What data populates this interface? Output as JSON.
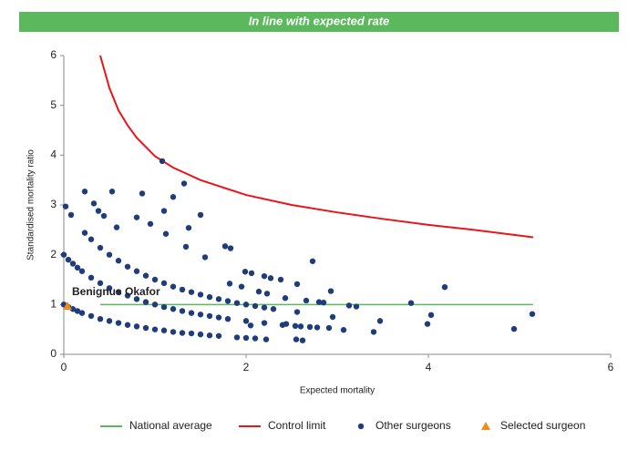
{
  "chart_data": {
    "type": "scatter",
    "title": "In line with expected rate",
    "xlabel": "Expected mortality",
    "ylabel": "Standardised mortality ratio",
    "annotation": "Benignus Okafor",
    "xlim": [
      0,
      6
    ],
    "ylim": [
      0,
      6
    ],
    "xticks": [
      0,
      2,
      4,
      6
    ],
    "yticks": [
      0,
      1,
      2,
      3,
      4,
      5,
      6
    ],
    "grid": false,
    "series": [
      {
        "name": "National average",
        "color": "#5cb85c",
        "marker": "line",
        "x": [
          0.4,
          5.15
        ],
        "values": [
          1,
          1
        ]
      },
      {
        "name": "Control limit",
        "color": "#e8151b",
        "marker": "line",
        "x": [
          0.4,
          0.5,
          0.6,
          0.7,
          0.8,
          1.0,
          1.2,
          1.5,
          2.0,
          2.5,
          3.0,
          3.5,
          4.0,
          4.5,
          5.15
        ],
        "values": [
          6.0,
          5.35,
          4.9,
          4.6,
          4.35,
          3.98,
          3.75,
          3.5,
          3.2,
          3.0,
          2.85,
          2.72,
          2.6,
          2.5,
          2.35
        ]
      },
      {
        "name": "Other surgeons",
        "color": "#1f3d7a",
        "marker": "circle",
        "x": [
          0,
          0.05,
          0.1,
          0.15,
          0.2,
          0.3,
          0.4,
          0.5,
          0.6,
          0.7,
          0.8,
          0.9,
          1.0,
          1.1,
          1.2,
          1.3,
          1.4,
          1.5,
          1.6,
          1.7,
          1.9,
          2.0,
          2.1,
          0,
          0.05,
          0.1,
          0.15,
          0.2,
          0.3,
          0.4,
          0.5,
          0.6,
          0.7,
          0.8,
          0.9,
          1.0,
          1.1,
          1.2,
          1.3,
          1.4,
          1.5,
          1.6,
          1.7,
          1.8,
          2.0,
          2.2,
          2.4,
          2.6,
          0.23,
          0.3,
          0.4,
          0.5,
          0.6,
          0.7,
          0.8,
          0.9,
          1.0,
          1.1,
          1.2,
          1.3,
          1.4,
          1.5,
          1.6,
          1.7,
          1.8,
          1.9,
          2.0,
          2.1,
          2.2,
          2.3,
          0.02,
          0.08,
          0.23,
          0.33,
          0.38,
          0.44,
          0.53,
          0.58,
          0.8,
          0.86,
          0.95,
          1.08,
          1.1,
          1.12,
          1.2,
          1.32,
          1.34,
          1.37,
          1.5,
          1.55,
          1.77,
          1.83,
          1.82,
          1.95,
          1.99,
          2.06,
          2.2,
          2.27,
          2.38,
          2.14,
          2.23,
          2.43,
          2.56,
          2.66,
          2.73,
          2.8,
          2.85,
          2.93,
          3.13,
          3.21,
          2.44,
          2.54,
          2.7,
          2.78,
          2.91,
          3.07,
          2.55,
          2.62,
          2.56,
          2.95,
          3.4,
          3.47,
          3.81,
          3.99,
          4.03,
          4.18,
          4.94,
          5.14,
          2.22,
          2.05
        ],
        "values": [
          1.0,
          0.95,
          0.91,
          0.87,
          0.83,
          0.77,
          0.71,
          0.67,
          0.63,
          0.59,
          0.56,
          0.53,
          0.5,
          0.48,
          0.45,
          0.43,
          0.42,
          0.4,
          0.38,
          0.37,
          0.34,
          0.33,
          0.32,
          2.0,
          1.9,
          1.82,
          1.74,
          1.67,
          1.54,
          1.43,
          1.33,
          1.25,
          1.18,
          1.11,
          1.05,
          1.0,
          0.95,
          0.91,
          0.87,
          0.83,
          0.8,
          0.77,
          0.74,
          0.71,
          0.67,
          0.63,
          0.59,
          0.56,
          2.44,
          2.31,
          2.14,
          2.0,
          1.88,
          1.76,
          1.67,
          1.58,
          1.5,
          1.43,
          1.36,
          1.3,
          1.25,
          1.2,
          1.15,
          1.11,
          1.07,
          1.03,
          1.0,
          0.97,
          0.94,
          0.91,
          2.97,
          2.8,
          3.27,
          3.03,
          2.88,
          2.78,
          3.27,
          2.55,
          2.75,
          3.23,
          2.62,
          3.88,
          2.88,
          2.42,
          3.16,
          3.43,
          2.16,
          2.54,
          2.8,
          1.95,
          2.17,
          2.13,
          1.42,
          1.36,
          1.66,
          1.63,
          1.57,
          1.53,
          1.5,
          1.26,
          1.22,
          1.13,
          1.41,
          1.08,
          1.87,
          1.05,
          1.04,
          1.27,
          0.98,
          0.96,
          0.61,
          0.57,
          0.55,
          0.54,
          0.53,
          0.49,
          0.3,
          0.28,
          0.85,
          0.75,
          0.45,
          0.67,
          1.03,
          0.61,
          0.79,
          1.35,
          0.51,
          0.81,
          0.3,
          0.58
        ]
      },
      {
        "name": "Selected surgeon",
        "color": "#f08a1c",
        "marker": "triangle",
        "x": [
          0.04
        ],
        "values": [
          0.97
        ]
      }
    ]
  }
}
